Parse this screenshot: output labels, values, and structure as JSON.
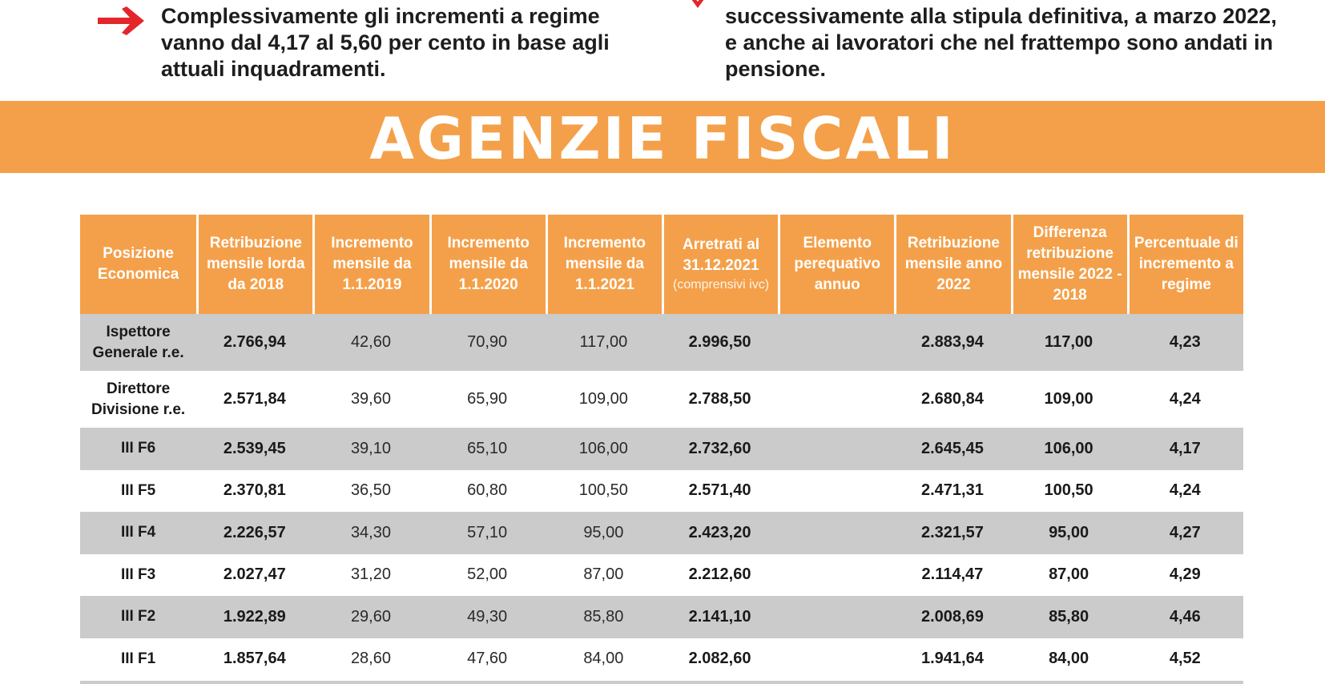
{
  "intro": {
    "left_text": "Complessivamente gli incrementi a regime vanno dal 4,17 al 5,60 per cento in base agli attuali inquadramenti.",
    "right_text": "successivamente alla stipula definitiva, a marzo 2022, e anche ai lavoratori che nel frattempo sono andati in pensione."
  },
  "banner": {
    "title": "AGENZIE FISCALI"
  },
  "colors": {
    "accent": "#f4a04a",
    "row_alt": "#cbcbcb",
    "arrow": "#e3262c"
  },
  "table": {
    "headers": [
      {
        "label": "Posizione Economica"
      },
      {
        "label": "Retribuzione mensile lorda da 2018"
      },
      {
        "label": "Incremento mensile da 1.1.2019"
      },
      {
        "label": "Incremento mensile da 1.1.2020"
      },
      {
        "label": "Incremento mensile da 1.1.2021"
      },
      {
        "label": "Arretrati al 31.12.2021",
        "note": "(comprensivi ivc)"
      },
      {
        "label": "Elemento perequativo annuo"
      },
      {
        "label": "Retribuzione mensile anno 2022"
      },
      {
        "label": "Differenza retribuzione mensile 2022 - 2018"
      },
      {
        "label": "Percentuale di incremento a regime"
      }
    ],
    "rows": [
      {
        "pos": "Ispettore Generale r.e.",
        "r2018": "2.766,94",
        "i2019": "42,60",
        "i2020": "70,90",
        "i2021": "117,00",
        "arr": "2.996,50",
        "elem": "",
        "r2022": "2.883,94",
        "diff": "117,00",
        "perc": "4,23"
      },
      {
        "pos": "Direttore Divisione r.e.",
        "r2018": "2.571,84",
        "i2019": "39,60",
        "i2020": "65,90",
        "i2021": "109,00",
        "arr": "2.788,50",
        "elem": "",
        "r2022": "2.680,84",
        "diff": "109,00",
        "perc": "4,24"
      },
      {
        "pos": "III F6",
        "r2018": "2.539,45",
        "i2019": "39,10",
        "i2020": "65,10",
        "i2021": "106,00",
        "arr": "2.732,60",
        "elem": "",
        "r2022": "2.645,45",
        "diff": "106,00",
        "perc": "4,17"
      },
      {
        "pos": "III F5",
        "r2018": "2.370,81",
        "i2019": "36,50",
        "i2020": "60,80",
        "i2021": "100,50",
        "arr": "2.571,40",
        "elem": "",
        "r2022": "2.471,31",
        "diff": "100,50",
        "perc": "4,24"
      },
      {
        "pos": "III F4",
        "r2018": "2.226,57",
        "i2019": "34,30",
        "i2020": "57,10",
        "i2021": "95,00",
        "arr": "2.423,20",
        "elem": "",
        "r2022": "2.321,57",
        "diff": "95,00",
        "perc": "4,27"
      },
      {
        "pos": "III F3",
        "r2018": "2.027,47",
        "i2019": "31,20",
        "i2020": "52,00",
        "i2021": "87,00",
        "arr": "2.212,60",
        "elem": "",
        "r2022": "2.114,47",
        "diff": "87,00",
        "perc": "4,29"
      },
      {
        "pos": "III F2",
        "r2018": "1.922,89",
        "i2019": "29,60",
        "i2020": "49,30",
        "i2021": "85,80",
        "arr": "2.141,10",
        "elem": "",
        "r2022": "2.008,69",
        "diff": "85,80",
        "perc": "4,46"
      },
      {
        "pos": "III F1",
        "r2018": "1.857,64",
        "i2019": "28,60",
        "i2020": "47,60",
        "i2021": "84,00",
        "arr": "2.082,60",
        "elem": "",
        "r2022": "1.941,64",
        "diff": "84,00",
        "perc": "4,52"
      }
    ]
  }
}
